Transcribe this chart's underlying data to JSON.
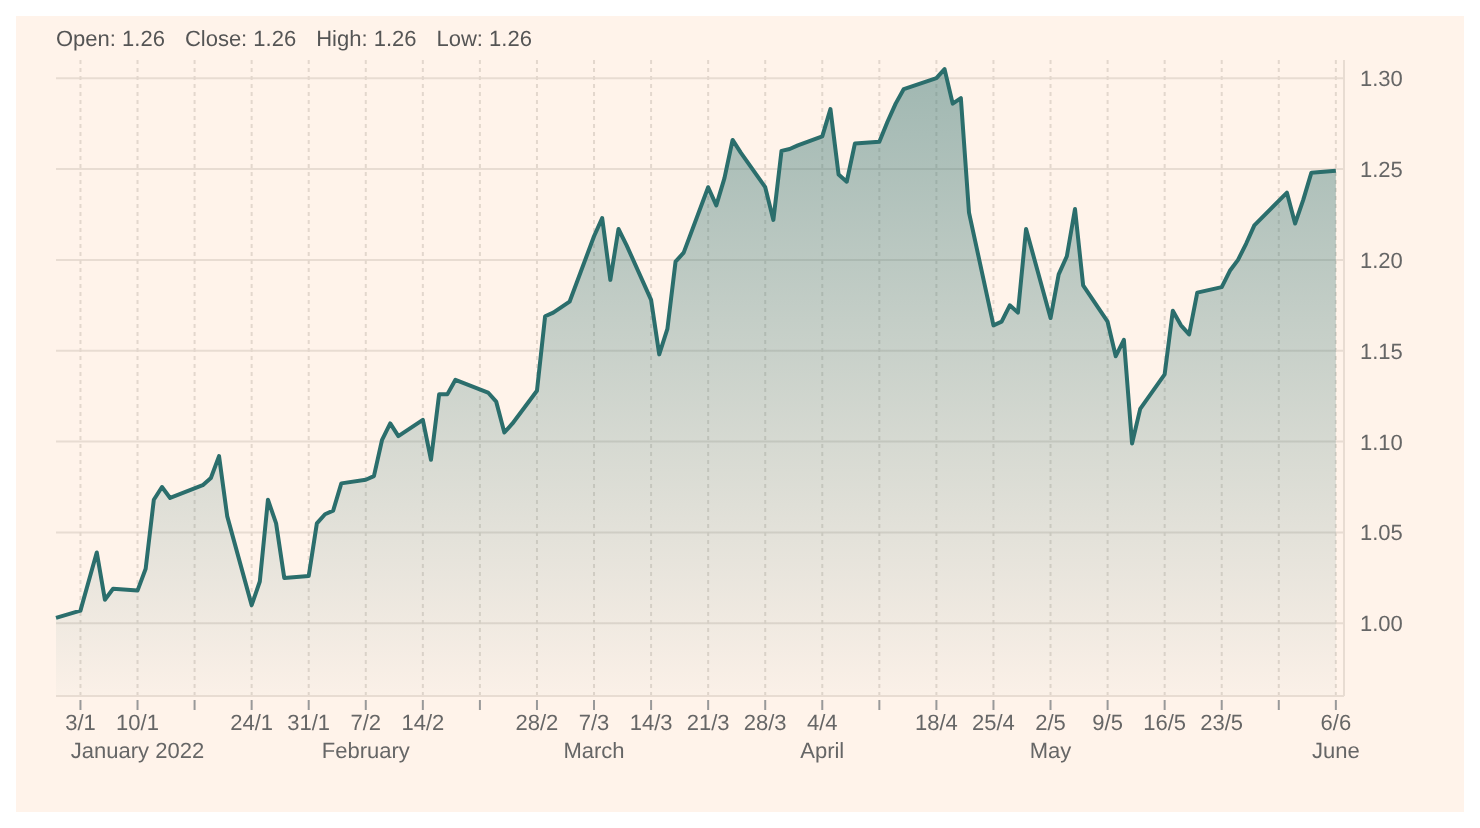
{
  "chart_data": {
    "type": "area",
    "annotations": [
      "Open: 1.26",
      "Close: 1.26",
      "High: 1.26",
      "Low: 1.26"
    ],
    "x": [
      "2021-12-31",
      "2022-01-03",
      "2022-01-04",
      "2022-01-05",
      "2022-01-06",
      "2022-01-07",
      "2022-01-10",
      "2022-01-11",
      "2022-01-12",
      "2022-01-13",
      "2022-01-14",
      "2022-01-18",
      "2022-01-19",
      "2022-01-20",
      "2022-01-21",
      "2022-01-24",
      "2022-01-25",
      "2022-01-26",
      "2022-01-27",
      "2022-01-28",
      "2022-01-31",
      "2022-02-01",
      "2022-02-02",
      "2022-02-03",
      "2022-02-04",
      "2022-02-07",
      "2022-02-08",
      "2022-02-09",
      "2022-02-10",
      "2022-02-11",
      "2022-02-14",
      "2022-02-15",
      "2022-02-16",
      "2022-02-17",
      "2022-02-18",
      "2022-02-22",
      "2022-02-23",
      "2022-02-24",
      "2022-02-25",
      "2022-02-28",
      "2022-03-01",
      "2022-03-02",
      "2022-03-03",
      "2022-03-04",
      "2022-03-07",
      "2022-03-08",
      "2022-03-09",
      "2022-03-10",
      "2022-03-11",
      "2022-03-14",
      "2022-03-15",
      "2022-03-16",
      "2022-03-17",
      "2022-03-18",
      "2022-03-21",
      "2022-03-22",
      "2022-03-23",
      "2022-03-24",
      "2022-03-25",
      "2022-03-28",
      "2022-03-29",
      "2022-03-30",
      "2022-03-31",
      "2022-04-01",
      "2022-04-04",
      "2022-04-05",
      "2022-04-06",
      "2022-04-07",
      "2022-04-08",
      "2022-04-11",
      "2022-04-12",
      "2022-04-13",
      "2022-04-14",
      "2022-04-18",
      "2022-04-19",
      "2022-04-20",
      "2022-04-21",
      "2022-04-22",
      "2022-04-25",
      "2022-04-26",
      "2022-04-27",
      "2022-04-28",
      "2022-04-29",
      "2022-05-02",
      "2022-05-03",
      "2022-05-04",
      "2022-05-05",
      "2022-05-06",
      "2022-05-09",
      "2022-05-10",
      "2022-05-11",
      "2022-05-12",
      "2022-05-13",
      "2022-05-16",
      "2022-05-17",
      "2022-05-18",
      "2022-05-19",
      "2022-05-20",
      "2022-05-23",
      "2022-05-24",
      "2022-05-25",
      "2022-05-26",
      "2022-05-27",
      "2022-05-31",
      "2022-06-01",
      "2022-06-02",
      "2022-06-03",
      "2022-06-06"
    ],
    "series": [
      {
        "color": "#2b6e6c",
        "values": [
          1.003,
          1.007,
          1.023,
          1.039,
          1.013,
          1.019,
          1.018,
          1.03,
          1.068,
          1.075,
          1.069,
          1.076,
          1.08,
          1.092,
          1.059,
          1.01,
          1.023,
          1.068,
          1.055,
          1.025,
          1.026,
          1.055,
          1.06,
          1.062,
          1.077,
          1.079,
          1.081,
          1.101,
          1.11,
          1.103,
          1.112,
          1.09,
          1.126,
          1.126,
          1.134,
          1.127,
          1.122,
          1.105,
          1.11,
          1.128,
          1.169,
          1.171,
          1.174,
          1.177,
          1.213,
          1.223,
          1.189,
          1.217,
          1.208,
          1.178,
          1.148,
          1.162,
          1.199,
          1.204,
          1.24,
          1.23,
          1.245,
          1.266,
          1.259,
          1.24,
          1.222,
          1.26,
          1.261,
          1.263,
          1.268,
          1.283,
          1.247,
          1.243,
          1.264,
          1.265,
          1.276,
          1.286,
          1.294,
          1.3,
          1.305,
          1.286,
          1.289,
          1.226,
          1.164,
          1.166,
          1.175,
          1.171,
          1.217,
          1.168,
          1.192,
          1.202,
          1.228,
          1.186,
          1.166,
          1.147,
          1.156,
          1.099,
          1.118,
          1.137,
          1.172,
          1.164,
          1.159,
          1.182,
          1.185,
          1.194,
          1.2,
          1.209,
          1.219,
          1.237,
          1.22,
          1.233,
          1.248,
          1.249
        ]
      }
    ],
    "xlim": [
      "2021-12-31",
      "2022-06-07"
    ],
    "xticks": [
      {
        "value": "2022-01-03",
        "label": "3/1"
      },
      {
        "value": "2022-01-10",
        "label": "10/1\nJanuary 2022"
      },
      {
        "value": "2022-01-17",
        "label": null
      },
      {
        "value": "2022-01-24",
        "label": "24/1"
      },
      {
        "value": "2022-01-31",
        "label": "31/1"
      },
      {
        "value": "2022-02-07",
        "label": "7/2\nFebruary"
      },
      {
        "value": "2022-02-14",
        "label": "14/2"
      },
      {
        "value": "2022-02-21",
        "label": null
      },
      {
        "value": "2022-02-28",
        "label": "28/2"
      },
      {
        "value": "2022-03-07",
        "label": "7/3\nMarch"
      },
      {
        "value": "2022-03-14",
        "label": "14/3"
      },
      {
        "value": "2022-03-21",
        "label": "21/3"
      },
      {
        "value": "2022-03-28",
        "label": "28/3"
      },
      {
        "value": "2022-04-04",
        "label": "4/4\nApril"
      },
      {
        "value": "2022-04-11",
        "label": null
      },
      {
        "value": "2022-04-18",
        "label": "18/4"
      },
      {
        "value": "2022-04-25",
        "label": "25/4"
      },
      {
        "value": "2022-05-02",
        "label": "2/5\nMay"
      },
      {
        "value": "2022-05-09",
        "label": "9/5"
      },
      {
        "value": "2022-05-16",
        "label": "16/5"
      },
      {
        "value": "2022-05-23",
        "label": "23/5"
      },
      {
        "value": "2022-05-30",
        "label": null
      },
      {
        "value": "2022-06-06",
        "label": "6/6\nJune"
      }
    ],
    "ylim": [
      0.96,
      1.31
    ],
    "yticks": [
      {
        "value": 1,
        "label": "1.00"
      },
      {
        "value": 1.05,
        "label": "1.05"
      },
      {
        "value": 1.1,
        "label": "1.10"
      },
      {
        "value": 1.15,
        "label": "1.15"
      },
      {
        "value": 1.2,
        "label": "1.20"
      },
      {
        "value": 1.25,
        "label": "1.25"
      },
      {
        "value": 1.3,
        "label": "1.30"
      }
    ],
    "grid": true,
    "marker": "none",
    "line_style": "solid"
  }
}
